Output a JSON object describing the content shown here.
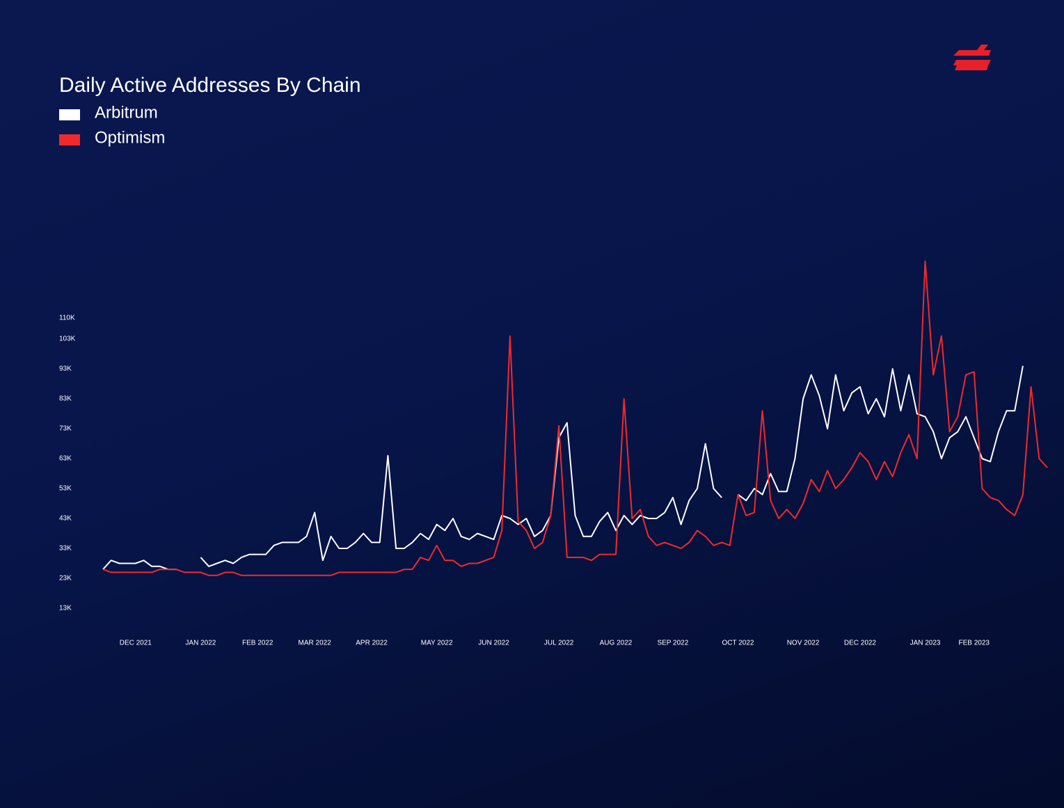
{
  "chart_data": {
    "type": "line",
    "title": "Daily Active Addresses By Chain",
    "categories": [
      null,
      null,
      null,
      null,
      "DEC 2021",
      null,
      null,
      null,
      null,
      null,
      null,
      null,
      "JAN 2022",
      null,
      null,
      null,
      null,
      null,
      null,
      "FEB 2022",
      null,
      null,
      null,
      null,
      null,
      null,
      "MAR 2022",
      null,
      null,
      null,
      null,
      null,
      null,
      "APR 2022",
      null,
      null,
      null,
      null,
      null,
      null,
      null,
      "MAY 2022",
      null,
      null,
      null,
      null,
      null,
      null,
      "JUN 2022",
      null,
      null,
      null,
      null,
      null,
      null,
      null,
      "JUL 2022",
      null,
      null,
      null,
      null,
      null,
      null,
      "AUG 2022",
      null,
      null,
      null,
      null,
      null,
      null,
      "SEP 2022",
      null,
      null,
      null,
      null,
      null,
      null,
      null,
      "OCT 2022",
      null,
      null,
      null,
      null,
      null,
      null,
      null,
      "NOV 2022",
      null,
      null,
      null,
      null,
      null,
      null,
      "DEC 2022",
      null,
      null,
      null,
      null,
      null,
      null,
      null,
      "JAN 2023",
      null,
      null,
      null,
      null,
      null,
      "FEB 2023",
      null,
      null,
      null,
      null,
      null,
      null,
      null,
      null,
      null
    ],
    "series": [
      {
        "name": "Arbitrum",
        "color": "#ffffff",
        "values": [
          26000,
          29000,
          28000,
          28000,
          28000,
          29000,
          27000,
          27000,
          26000,
          26000,
          null,
          null,
          30000,
          27000,
          28000,
          29000,
          28000,
          30000,
          31000,
          31000,
          31000,
          34000,
          35000,
          35000,
          35000,
          37000,
          45000,
          29000,
          37000,
          33000,
          33000,
          35000,
          38000,
          35000,
          35000,
          64000,
          33000,
          33000,
          35000,
          38000,
          36000,
          41000,
          39000,
          43000,
          37000,
          36000,
          38000,
          37000,
          36000,
          44000,
          43000,
          41000,
          43000,
          37000,
          39000,
          44000,
          70000,
          75000,
          44000,
          37000,
          37000,
          42000,
          45000,
          39000,
          44000,
          41000,
          44000,
          43000,
          43000,
          45000,
          50000,
          41000,
          49000,
          53000,
          68000,
          53000,
          50000,
          null,
          51000,
          49000,
          53000,
          51000,
          58000,
          52000,
          52000,
          63000,
          83000,
          91000,
          84000,
          73000,
          91000,
          79000,
          85000,
          87000,
          78000,
          83000,
          77000,
          93000,
          79000,
          91000,
          78000,
          77000,
          72000,
          63000,
          70000,
          72000,
          77000,
          70000,
          63000,
          62000,
          72000,
          79000,
          79000,
          94000,
          null,
          null,
          null
        ]
      },
      {
        "name": "Optimism",
        "color": "#f02a2a",
        "values": [
          26000,
          25000,
          25000,
          25000,
          25000,
          25000,
          25000,
          26000,
          26000,
          26000,
          25000,
          25000,
          25000,
          24000,
          24000,
          25000,
          25000,
          24000,
          24000,
          24000,
          24000,
          24000,
          24000,
          24000,
          24000,
          24000,
          24000,
          24000,
          24000,
          25000,
          25000,
          25000,
          25000,
          25000,
          25000,
          25000,
          25000,
          26000,
          26000,
          30000,
          29000,
          34000,
          29000,
          29000,
          27000,
          28000,
          28000,
          29000,
          30000,
          39000,
          104000,
          42000,
          39000,
          33000,
          35000,
          44000,
          74000,
          30000,
          30000,
          30000,
          29000,
          31000,
          31000,
          31000,
          83000,
          43000,
          46000,
          37000,
          34000,
          35000,
          34000,
          33000,
          35000,
          39000,
          37000,
          34000,
          35000,
          34000,
          51000,
          44000,
          45000,
          79000,
          49000,
          43000,
          46000,
          43000,
          48000,
          56000,
          52000,
          59000,
          53000,
          56000,
          60000,
          65000,
          62000,
          56000,
          62000,
          57000,
          65000,
          71000,
          63000,
          129000,
          91000,
          104000,
          72000,
          77000,
          91000,
          92000,
          53000,
          50000,
          49000,
          46000,
          44000,
          51000,
          87000,
          63000,
          60000
        ]
      }
    ],
    "ylim": [
      5000,
      135000
    ],
    "yticks": [
      {
        "value": 13000,
        "label": "13K"
      },
      {
        "value": 23000,
        "label": "23K"
      },
      {
        "value": 33000,
        "label": "33K"
      },
      {
        "value": 43000,
        "label": "43K"
      },
      {
        "value": 53000,
        "label": "53K"
      },
      {
        "value": 63000,
        "label": "63K"
      },
      {
        "value": 73000,
        "label": "73K"
      },
      {
        "value": 83000,
        "label": "83K"
      },
      {
        "value": 93000,
        "label": "93K"
      },
      {
        "value": 103000,
        "label": "103K"
      },
      {
        "value": 110000,
        "label": "110K"
      }
    ],
    "grid": false
  }
}
